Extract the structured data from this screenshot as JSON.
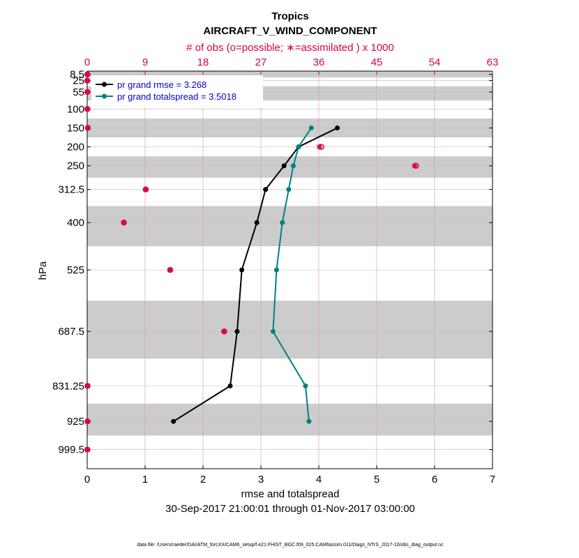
{
  "chart_data": {
    "type": "line",
    "title": "Tropics",
    "subtitle": "AIRCRAFT_V_WIND_COMPONENT",
    "top_axis_label": "# of obs (o=possible; ∗=assimilated ) x 1000",
    "xlabel": "rmse and totalspread",
    "ylabel": "hPa",
    "date_range": "30-Sep-2017 21:00:01 through 01-Nov-2017 03:00:00",
    "footer": "data file: /Users/raeder/DAI/ATM_forcXX/CAM6_setup/f.e21.FHIST_BGC.f09_025.CAM6assim.011/Diags_NTrS_2017-10/obs_diag_output.nc",
    "xlim": [
      0,
      7
    ],
    "x_ticks": [
      "0",
      "1",
      "2",
      "3",
      "4",
      "5",
      "6",
      "7"
    ],
    "top_xlim": [
      0,
      63
    ],
    "top_ticks": [
      "0",
      "9",
      "18",
      "27",
      "36",
      "45",
      "54",
      "63"
    ],
    "y_levels": [
      8.5,
      25,
      55,
      100,
      150,
      200,
      250,
      312.5,
      400,
      525,
      687.5,
      831.25,
      925,
      999.5
    ],
    "y_tick_labels": [
      "8.5",
      "25",
      "55",
      "100",
      "150",
      "200",
      "250",
      "312.5",
      "400",
      "525",
      "687.5",
      "831.25",
      "925",
      "999.5"
    ],
    "series": [
      {
        "name": "pr grand rmse = 3.268",
        "color": "#000000",
        "levels": [
          150,
          200,
          250,
          312.5,
          400,
          525,
          687.5,
          831.25,
          925
        ],
        "values": [
          4.32,
          3.65,
          3.4,
          3.08,
          2.93,
          2.67,
          2.59,
          2.47,
          1.49
        ]
      },
      {
        "name": "pr grand totalspread = 3.5018",
        "color": "#008080",
        "levels": [
          150,
          200,
          250,
          312.5,
          400,
          525,
          687.5,
          831.25,
          925
        ],
        "values": [
          3.87,
          3.65,
          3.56,
          3.48,
          3.37,
          3.27,
          3.21,
          3.77,
          3.83
        ]
      }
    ],
    "obs_counts": {
      "color": "#d6004e",
      "levels": [
        8.5,
        25,
        55,
        100,
        150,
        200,
        250,
        312.5,
        400,
        525,
        687.5,
        831.25,
        925,
        999.5
      ],
      "possible": [
        0.02,
        0.02,
        0.02,
        0.02,
        0.1,
        36.4,
        51.1,
        9.1,
        5.7,
        12.9,
        21.3,
        0.05,
        0.05,
        0.02
      ],
      "assimilated": [
        0.02,
        0.02,
        0.02,
        0.02,
        0.1,
        36.1,
        50.9,
        9.1,
        5.7,
        12.9,
        21.3,
        0.05,
        0.05,
        0.02
      ]
    }
  }
}
